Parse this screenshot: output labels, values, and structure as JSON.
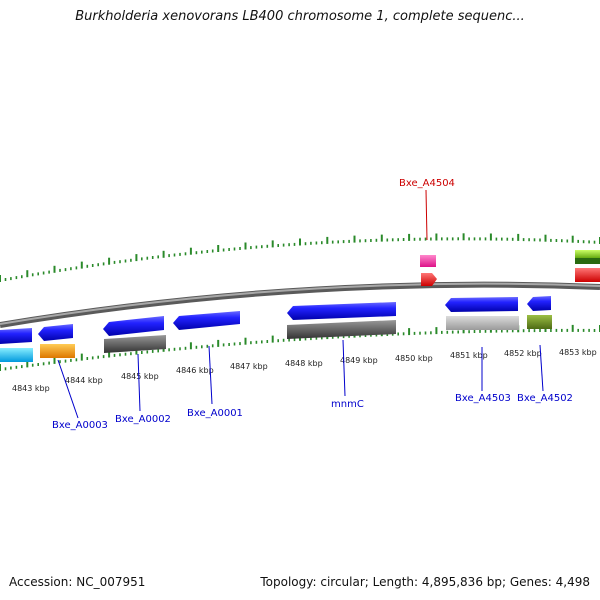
{
  "title": "Burkholderia xenovorans LB400 chromosome 1, complete sequenc...",
  "footer": {
    "accession": "Accession: NC_007951",
    "stats": "Topology: circular; Length: 4,895,836 bp; Genes: 4,498"
  },
  "ruler_labels": [
    "4843 kbp",
    "4844 kbp",
    "4845 kbp",
    "4846 kbp",
    "4847 kbp",
    "4848 kbp",
    "4849 kbp",
    "4850 kbp",
    "4851 kbp",
    "4852 kbp",
    "4853 kbp"
  ],
  "gene_labels": [
    {
      "text": "Bxe_A0003",
      "color": "#0000cc"
    },
    {
      "text": "Bxe_A0002",
      "color": "#0000cc"
    },
    {
      "text": "Bxe_A0001",
      "color": "#0000cc"
    },
    {
      "text": "mnmC",
      "color": "#0000cc"
    },
    {
      "text": "Bxe_A4503",
      "color": "#0000cc"
    },
    {
      "text": "Bxe_A4502",
      "color": "#0000cc"
    },
    {
      "text": "Bxe_A4504",
      "color": "#cc0000"
    }
  ],
  "colors": {
    "cds": "#1a1aff",
    "backbone": "#888888",
    "ticks": "#2a8a2a",
    "pink": "#ff33aa",
    "red": "#ff2222",
    "cyan": "#22ccff",
    "orange": "#ff9900",
    "olive": "#6b8e23",
    "gray_dark": "#666666",
    "gray_light": "#bbbbbb",
    "green_light": "#99dd33"
  }
}
